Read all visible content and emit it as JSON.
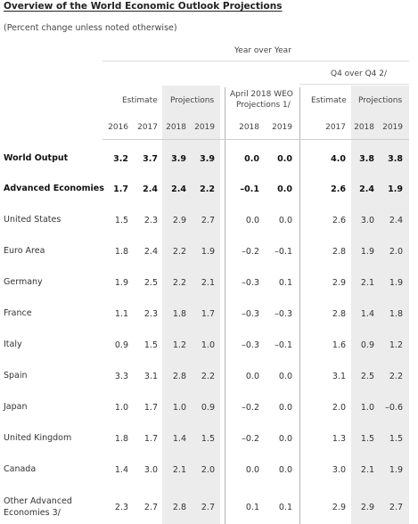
{
  "title": "Overview of the World Economic Outlook Projections",
  "subtitle": "(Percent change unless noted otherwise)",
  "headers": {
    "yoy": "Year over Year",
    "q4": "Q4 over Q4 2/",
    "estimate": "Estimate",
    "projections": "Projections",
    "wes_line1": "April 2018 WEO",
    "wes_line2": "Projections 1/",
    "estimate_q4": "Estimate",
    "projections_q4": "Projections",
    "years": [
      "2016",
      "2017",
      "2018",
      "2019",
      "2018",
      "2019",
      "2017",
      "2018",
      "2019"
    ]
  },
  "rows": [
    {
      "label": "World Output",
      "bold": true,
      "values": [
        "3.2",
        "3.7",
        "3.9",
        "3.9",
        "0.0",
        "0.0",
        "4.0",
        "3.8",
        "3.8"
      ]
    },
    {
      "label": "Advanced Economies",
      "bold": true,
      "values": [
        "1.7",
        "2.4",
        "2.4",
        "2.2",
        "–0.1",
        "0.0",
        "2.6",
        "2.4",
        "1.9"
      ]
    },
    {
      "label": "United States",
      "bold": false,
      "values": [
        "1.5",
        "2.3",
        "2.9",
        "2.7",
        "0.0",
        "0.0",
        "2.6",
        "3.0",
        "2.4"
      ]
    },
    {
      "label": "Euro Area",
      "bold": false,
      "values": [
        "1.8",
        "2.4",
        "2.2",
        "1.9",
        "–0.2",
        "–0.1",
        "2.8",
        "1.9",
        "2.0"
      ]
    },
    {
      "label": "Germany",
      "bold": false,
      "values": [
        "1.9",
        "2.5",
        "2.2",
        "2.1",
        "–0.3",
        "0.1",
        "2.9",
        "2.1",
        "1.9"
      ]
    },
    {
      "label": "France",
      "bold": false,
      "values": [
        "1.1",
        "2.3",
        "1.8",
        "1.7",
        "–0.3",
        "–0.3",
        "2.8",
        "1.4",
        "1.8"
      ]
    },
    {
      "label": "Italy",
      "bold": false,
      "values": [
        "0.9",
        "1.5",
        "1.2",
        "1.0",
        "–0.3",
        "–0.1",
        "1.6",
        "0.9",
        "1.2"
      ]
    },
    {
      "label": "Spain",
      "bold": false,
      "values": [
        "3.3",
        "3.1",
        "2.8",
        "2.2",
        "0.0",
        "0.0",
        "3.1",
        "2.5",
        "2.2"
      ]
    },
    {
      "label": "Japan",
      "bold": false,
      "values": [
        "1.0",
        "1.7",
        "1.0",
        "0.9",
        "–0.2",
        "0.0",
        "2.0",
        "1.0",
        "–0.6"
      ]
    },
    {
      "label": "United Kingdom",
      "bold": false,
      "values": [
        "1.8",
        "1.7",
        "1.4",
        "1.5",
        "–0.2",
        "0.0",
        "1.3",
        "1.5",
        "1.5"
      ]
    },
    {
      "label": "Canada",
      "bold": false,
      "values": [
        "1.4",
        "3.0",
        "2.1",
        "2.0",
        "0.0",
        "0.0",
        "3.0",
        "2.1",
        "1.9"
      ]
    },
    {
      "label_lines": [
        "Other Advanced",
        "Economies 3/"
      ],
      "bold": false,
      "values": [
        "2.3",
        "2.7",
        "2.8",
        "2.7",
        "0.1",
        "0.1",
        "2.9",
        "2.9",
        "2.7"
      ]
    }
  ]
}
